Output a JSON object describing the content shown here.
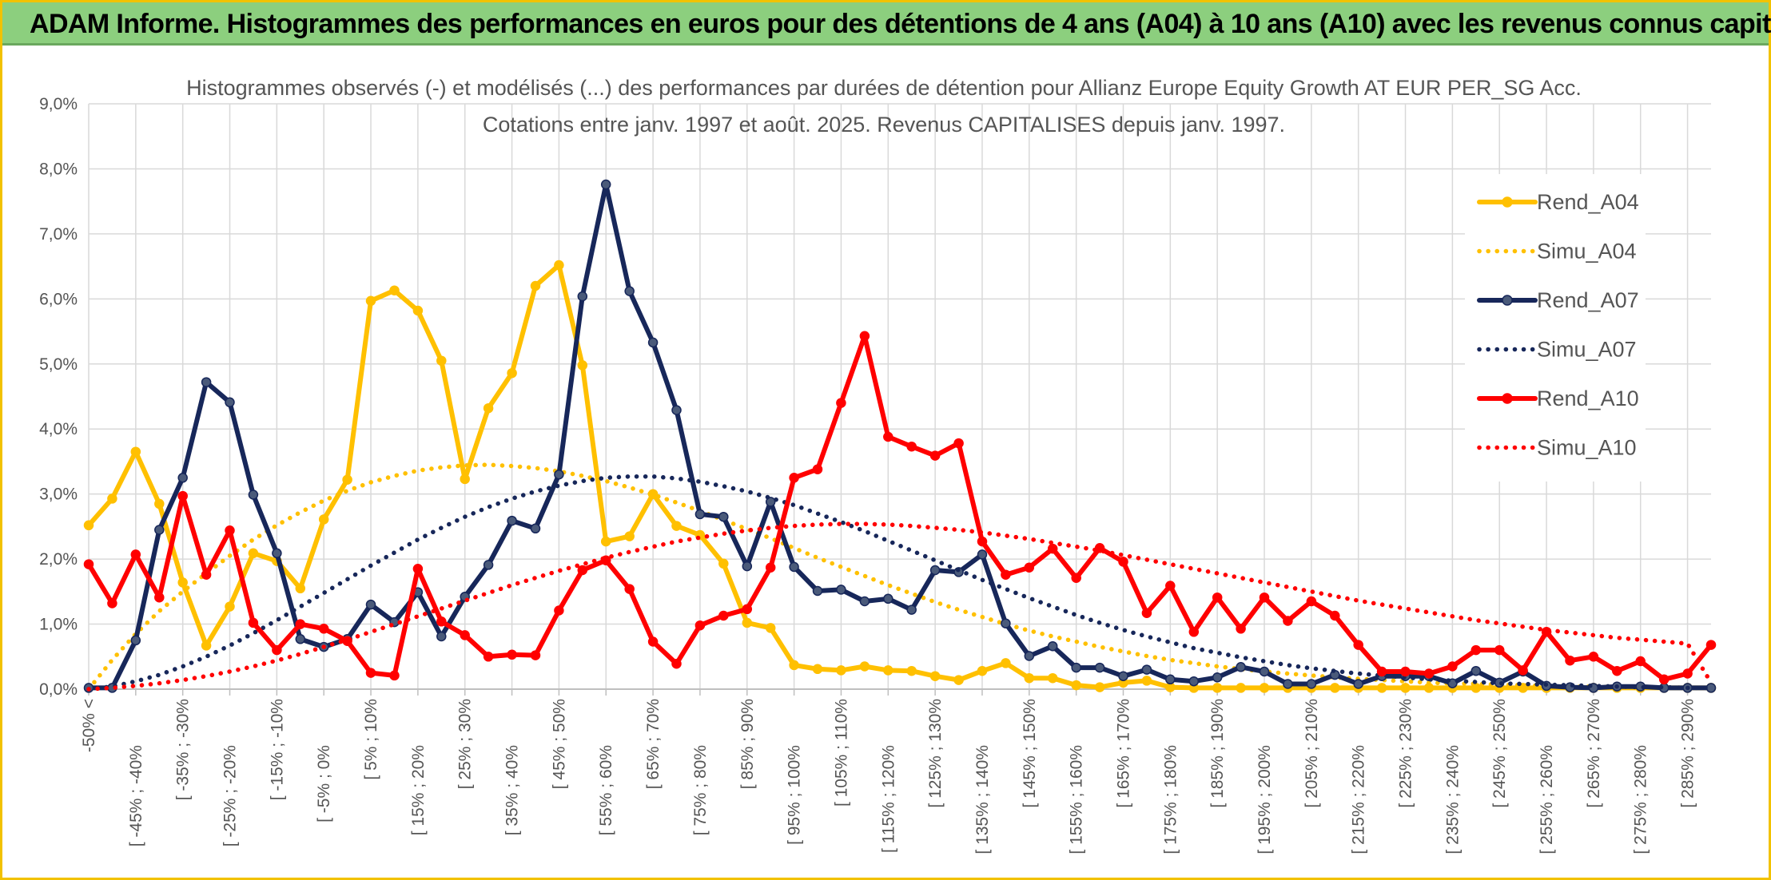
{
  "banner": {
    "title": "ADAM Informe. Histogrammes des performances en euros pour des détentions de 4 ans (A04) à 10 ans (A10) avec les revenus connus capitalisés"
  },
  "chart_data": {
    "type": "line",
    "title": "Histogrammes observés (-) et modélisés (...) des performances par durées de détention pour Allianz Europe Equity Growth AT EUR PER_SG Acc.",
    "subtitle": "Cotations entre janv. 1997 et août. 2025. Revenus CAPITALISES depuis janv. 1997.",
    "xlabel": "",
    "ylabel": "",
    "ylim": [
      0,
      9
    ],
    "yticks": [
      "0,0%",
      "1,0%",
      "2,0%",
      "3,0%",
      "4,0%",
      "5,0%",
      "6,0%",
      "7,0%",
      "8,0%",
      "9,0%"
    ],
    "grid": true,
    "legend_position": "right",
    "x_tick_labels": [
      "-50% <",
      "[ -45% ; -40%",
      "[ -35% ; -30%",
      "[ -25% ; -20%",
      "[ -15% ; -10%",
      "[ -5% ; 0%",
      "[ 5% ; 10%",
      "[ 15% ; 20%",
      "[ 25% ; 30%",
      "[ 35% ; 40%",
      "[ 45% ; 50%",
      "[ 55% ; 60%",
      "[ 65% ; 70%",
      "[ 75% ; 80%",
      "[ 85% ; 90%",
      "[ 95% ; 100%",
      "[ 105% ; 110%",
      "[ 115% ; 120%",
      "[ 125% ; 130%",
      "[ 135% ; 140%",
      "[ 145% ; 150%",
      "[ 155% ; 160%",
      "[ 165% ; 170%",
      "[ 175% ; 180%",
      "[ 185% ; 190%",
      "[ 195% ; 200%",
      "[ 205% ; 210%",
      "[ 215% ; 220%",
      "[ 225% ; 230%",
      "[ 235% ; 240%",
      "[ 245% ; 250%",
      "[ 255% ; 260%",
      "[ 265% ; 270%",
      "[ 275% ; 280%",
      "[ 285% ; 290%"
    ],
    "series": [
      {
        "name": "Rend_A04",
        "color": "#ffc000",
        "style": "solid",
        "markers": true,
        "values": [
          2.52,
          2.93,
          3.65,
          2.85,
          1.64,
          0.67,
          1.27,
          2.09,
          1.97,
          1.55,
          2.61,
          3.22,
          5.97,
          6.13,
          5.82,
          5.05,
          3.23,
          4.32,
          4.86,
          6.2,
          6.52,
          4.98,
          2.27,
          2.35,
          3.0,
          2.51,
          2.37,
          1.93,
          1.02,
          0.94,
          0.37,
          0.31,
          0.29,
          0.35,
          0.29,
          0.28,
          0.2,
          0.14,
          0.28,
          0.4,
          0.17,
          0.17,
          0.06,
          0.03,
          0.1,
          0.13,
          0.03,
          0.02,
          0.02,
          0.02,
          0.02,
          0.02,
          0.02,
          0.02,
          0.02,
          0.02,
          0.02,
          0.02,
          0.02,
          0.02,
          0.02,
          0.02,
          0.02,
          0.02,
          0.02,
          0.02,
          0.02,
          0.02,
          0.02,
          0.02
        ]
      },
      {
        "name": "Simu_A04",
        "color": "#ffc000",
        "style": "dotted",
        "markers": false,
        "values": [
          0.0,
          0.45,
          0.85,
          1.2,
          1.5,
          1.78,
          2.05,
          2.3,
          2.52,
          2.72,
          2.9,
          3.05,
          3.18,
          3.28,
          3.36,
          3.41,
          3.44,
          3.45,
          3.43,
          3.4,
          3.35,
          3.28,
          3.2,
          3.1,
          2.99,
          2.87,
          2.74,
          2.6,
          2.46,
          2.32,
          2.17,
          2.02,
          1.88,
          1.74,
          1.6,
          1.47,
          1.34,
          1.22,
          1.11,
          1.0,
          0.9,
          0.81,
          0.73,
          0.65,
          0.58,
          0.51,
          0.45,
          0.4,
          0.35,
          0.31,
          0.27,
          0.24,
          0.21,
          0.18,
          0.16,
          0.14,
          0.12,
          0.1,
          0.09,
          0.08,
          0.07,
          0.06,
          0.05,
          0.04,
          0.04,
          0.03,
          0.03,
          0.02,
          0.02,
          0.02
        ]
      },
      {
        "name": "Rend_A07",
        "color": "#17275a",
        "style": "solid",
        "markers": true,
        "values": [
          0.02,
          0.02,
          0.75,
          2.45,
          3.25,
          4.72,
          4.41,
          2.99,
          2.09,
          0.77,
          0.65,
          0.77,
          1.3,
          1.03,
          1.49,
          0.81,
          1.42,
          1.91,
          2.59,
          2.47,
          3.3,
          6.04,
          7.76,
          6.12,
          5.33,
          4.29,
          2.69,
          2.65,
          1.89,
          2.88,
          1.88,
          1.51,
          1.53,
          1.35,
          1.39,
          1.22,
          1.83,
          1.8,
          2.07,
          1.01,
          0.51,
          0.66,
          0.33,
          0.33,
          0.2,
          0.3,
          0.15,
          0.12,
          0.18,
          0.34,
          0.27,
          0.08,
          0.08,
          0.22,
          0.08,
          0.2,
          0.2,
          0.2,
          0.09,
          0.28,
          0.1,
          0.27,
          0.05,
          0.03,
          0.02,
          0.04,
          0.04,
          0.02,
          0.02,
          0.02
        ]
      },
      {
        "name": "Simu_A07",
        "color": "#17275a",
        "style": "dotted",
        "markers": false,
        "values": [
          0.0,
          0.04,
          0.12,
          0.22,
          0.35,
          0.5,
          0.67,
          0.86,
          1.06,
          1.27,
          1.48,
          1.69,
          1.9,
          2.1,
          2.3,
          2.48,
          2.65,
          2.8,
          2.93,
          3.04,
          3.13,
          3.2,
          3.25,
          3.27,
          3.27,
          3.24,
          3.19,
          3.12,
          3.04,
          2.94,
          2.83,
          2.7,
          2.57,
          2.43,
          2.28,
          2.13,
          1.98,
          1.83,
          1.68,
          1.54,
          1.4,
          1.27,
          1.14,
          1.02,
          0.91,
          0.81,
          0.72,
          0.63,
          0.56,
          0.49,
          0.43,
          0.37,
          0.32,
          0.28,
          0.24,
          0.21,
          0.18,
          0.15,
          0.13,
          0.11,
          0.09,
          0.08,
          0.07,
          0.06,
          0.05,
          0.04,
          0.03,
          0.03,
          0.02,
          0.02
        ]
      },
      {
        "name": "Rend_A10",
        "color": "#ff0000",
        "style": "solid",
        "markers": true,
        "values": [
          1.92,
          1.32,
          2.07,
          1.41,
          2.97,
          1.76,
          2.44,
          1.02,
          0.6,
          1.0,
          0.93,
          0.74,
          0.25,
          0.21,
          1.85,
          1.04,
          0.83,
          0.5,
          0.53,
          0.52,
          1.21,
          1.83,
          1.98,
          1.54,
          0.73,
          0.39,
          0.98,
          1.13,
          1.23,
          1.87,
          3.25,
          3.38,
          4.4,
          5.43,
          3.88,
          3.73,
          3.59,
          3.78,
          2.27,
          1.76,
          1.87,
          2.16,
          1.71,
          2.17,
          1.96,
          1.17,
          1.59,
          0.88,
          1.41,
          0.93,
          1.41,
          1.05,
          1.35,
          1.13,
          0.68,
          0.27,
          0.27,
          0.24,
          0.35,
          0.6,
          0.6,
          0.29,
          0.88,
          0.44,
          0.5,
          0.28,
          0.43,
          0.15,
          0.24,
          0.68
        ]
      },
      {
        "name": "Simu_A10",
        "color": "#ff0000",
        "style": "dotted",
        "markers": false,
        "values": [
          0.0,
          0.02,
          0.05,
          0.09,
          0.14,
          0.2,
          0.27,
          0.35,
          0.44,
          0.54,
          0.65,
          0.76,
          0.88,
          1.0,
          1.12,
          1.24,
          1.36,
          1.48,
          1.6,
          1.71,
          1.82,
          1.92,
          2.02,
          2.11,
          2.19,
          2.27,
          2.33,
          2.39,
          2.44,
          2.48,
          2.51,
          2.53,
          2.54,
          2.54,
          2.53,
          2.51,
          2.48,
          2.45,
          2.41,
          2.36,
          2.31,
          2.25,
          2.19,
          2.13,
          2.06,
          1.99,
          1.92,
          1.85,
          1.78,
          1.71,
          1.64,
          1.57,
          1.5,
          1.43,
          1.36,
          1.3,
          1.24,
          1.18,
          1.12,
          1.06,
          1.01,
          0.96,
          0.91,
          0.87,
          0.83,
          0.79,
          0.76,
          0.73,
          0.7,
          0.1
        ]
      }
    ]
  }
}
